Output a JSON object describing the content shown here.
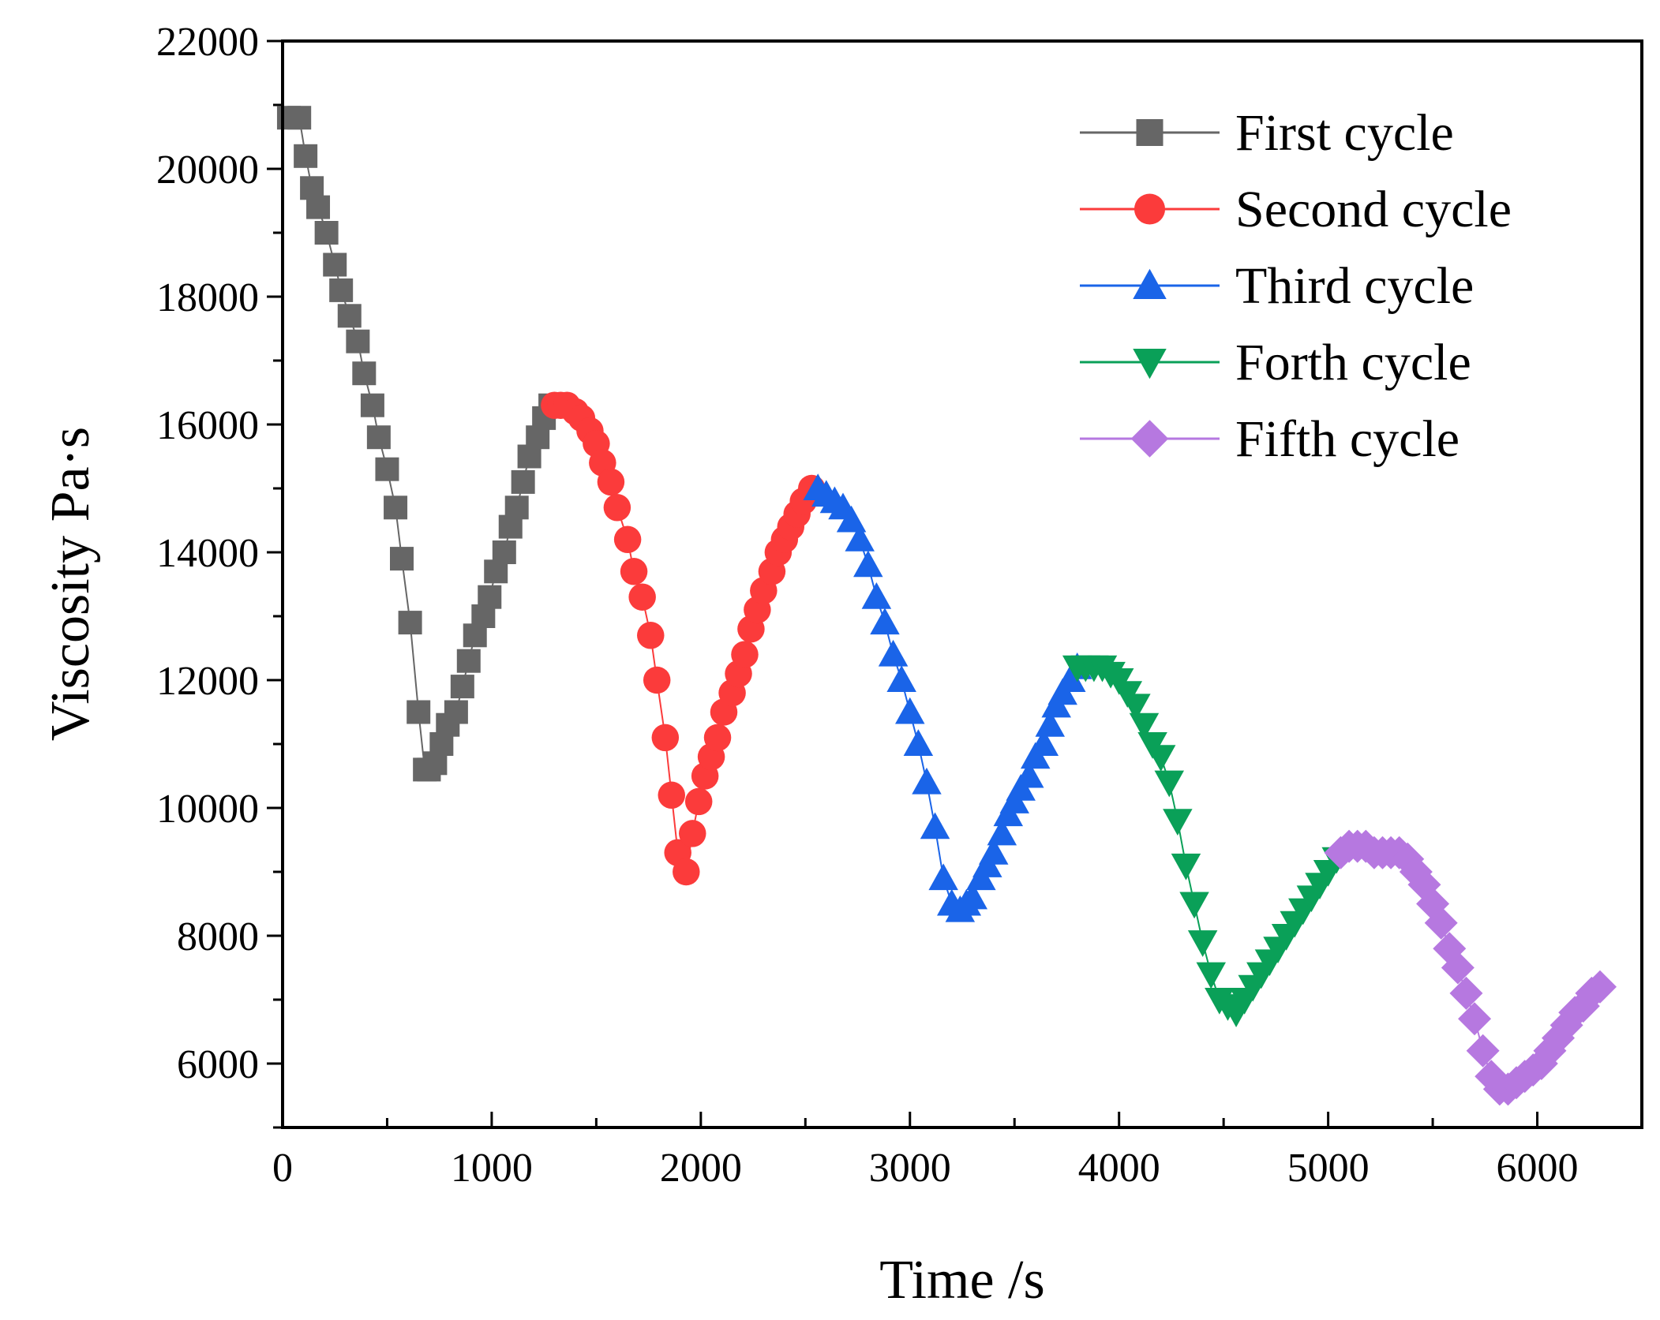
{
  "chart_data": {
    "type": "line",
    "title": "",
    "xlabel": "Time /s",
    "ylabel": "Viscosity Pa·s",
    "xlim": [
      0,
      6500
    ],
    "ylim": [
      5000,
      22000
    ],
    "xticks": [
      "0",
      "1000",
      "2000",
      "3000",
      "4000",
      "5000",
      "6000"
    ],
    "yticks": [
      "6000",
      "8000",
      "10000",
      "12000",
      "14000",
      "16000",
      "18000",
      "20000",
      "22000"
    ],
    "legend_position": "top-right",
    "series": [
      {
        "name": "First cycle",
        "color": "#666666",
        "marker": "square",
        "x": [
          30,
          80,
          110,
          140,
          170,
          210,
          250,
          280,
          320,
          360,
          390,
          430,
          460,
          500,
          540,
          570,
          610,
          650,
          680,
          700,
          730,
          760,
          790,
          830,
          860,
          890,
          920,
          960,
          990,
          1020,
          1060,
          1090,
          1120,
          1150,
          1180,
          1220,
          1250,
          1280
        ],
        "y": [
          20800,
          20800,
          20200,
          19700,
          19400,
          19000,
          18500,
          18100,
          17700,
          17300,
          16800,
          16300,
          15800,
          15300,
          14700,
          13900,
          12900,
          11500,
          10600,
          10600,
          10700,
          11000,
          11300,
          11500,
          11900,
          12300,
          12700,
          13000,
          13300,
          13700,
          14000,
          14400,
          14700,
          15100,
          15500,
          15800,
          16100,
          16300
        ]
      },
      {
        "name": "Second cycle",
        "color": "#fb3b3b",
        "marker": "circle",
        "x": [
          1300,
          1330,
          1360,
          1400,
          1430,
          1470,
          1500,
          1530,
          1570,
          1600,
          1650,
          1680,
          1720,
          1760,
          1790,
          1830,
          1860,
          1890,
          1930,
          1960,
          1990,
          2020,
          2050,
          2080,
          2110,
          2150,
          2180,
          2210,
          2240,
          2270,
          2300,
          2340,
          2370,
          2400,
          2430,
          2460,
          2490,
          2530
        ],
        "y": [
          16300,
          16300,
          16300,
          16200,
          16100,
          15900,
          15700,
          15400,
          15100,
          14700,
          14200,
          13700,
          13300,
          12700,
          12000,
          11100,
          10200,
          9300,
          9000,
          9600,
          10100,
          10500,
          10800,
          11100,
          11500,
          11800,
          12100,
          12400,
          12800,
          13100,
          13400,
          13700,
          14000,
          14200,
          14400,
          14600,
          14800,
          15000
        ]
      },
      {
        "name": "Third cycle",
        "color": "#1a64e8",
        "marker": "triangle-up",
        "x": [
          2560,
          2600,
          2640,
          2680,
          2720,
          2760,
          2800,
          2840,
          2880,
          2920,
          2960,
          3000,
          3040,
          3080,
          3120,
          3160,
          3200,
          3240,
          3270,
          3300,
          3340,
          3370,
          3400,
          3440,
          3470,
          3500,
          3530,
          3570,
          3600,
          3640,
          3670,
          3700,
          3730,
          3770,
          3800
        ],
        "y": [
          15000,
          14900,
          14800,
          14700,
          14500,
          14200,
          13800,
          13300,
          12900,
          12400,
          12000,
          11500,
          11000,
          10400,
          9700,
          8900,
          8500,
          8400,
          8500,
          8600,
          8900,
          9100,
          9300,
          9600,
          9900,
          10100,
          10300,
          10500,
          10800,
          11000,
          11300,
          11600,
          11800,
          12000,
          12200
        ]
      },
      {
        "name": "Forth cycle",
        "color": "#0aa058",
        "marker": "triangle-down",
        "x": [
          3800,
          3840,
          3880,
          3920,
          3960,
          4000,
          4040,
          4080,
          4120,
          4160,
          4200,
          4240,
          4280,
          4320,
          4360,
          4400,
          4440,
          4480,
          4520,
          4560,
          4600,
          4640,
          4680,
          4720,
          4760,
          4800,
          4840,
          4880,
          4920,
          4960,
          5000,
          5040
        ],
        "y": [
          12200,
          12200,
          12200,
          12200,
          12100,
          12000,
          11800,
          11600,
          11300,
          11000,
          10800,
          10400,
          9800,
          9100,
          8500,
          7900,
          7400,
          7000,
          6900,
          6800,
          7000,
          7200,
          7400,
          7600,
          7800,
          8000,
          8200,
          8400,
          8600,
          8800,
          9000,
          9200
        ]
      },
      {
        "name": "Fifth cycle",
        "color": "#b678e0",
        "marker": "diamond",
        "x": [
          5060,
          5100,
          5140,
          5180,
          5220,
          5260,
          5300,
          5340,
          5380,
          5420,
          5460,
          5500,
          5540,
          5580,
          5620,
          5660,
          5700,
          5740,
          5780,
          5820,
          5860,
          5900,
          5940,
          5980,
          6020,
          6060,
          6100,
          6140,
          6180,
          6220,
          6260,
          6300
        ],
        "y": [
          9300,
          9400,
          9400,
          9400,
          9300,
          9300,
          9300,
          9300,
          9200,
          9000,
          8800,
          8500,
          8200,
          7800,
          7500,
          7100,
          6700,
          6200,
          5800,
          5600,
          5600,
          5700,
          5800,
          5900,
          6000,
          6200,
          6400,
          6600,
          6800,
          6900,
          7100,
          7200
        ]
      }
    ]
  }
}
